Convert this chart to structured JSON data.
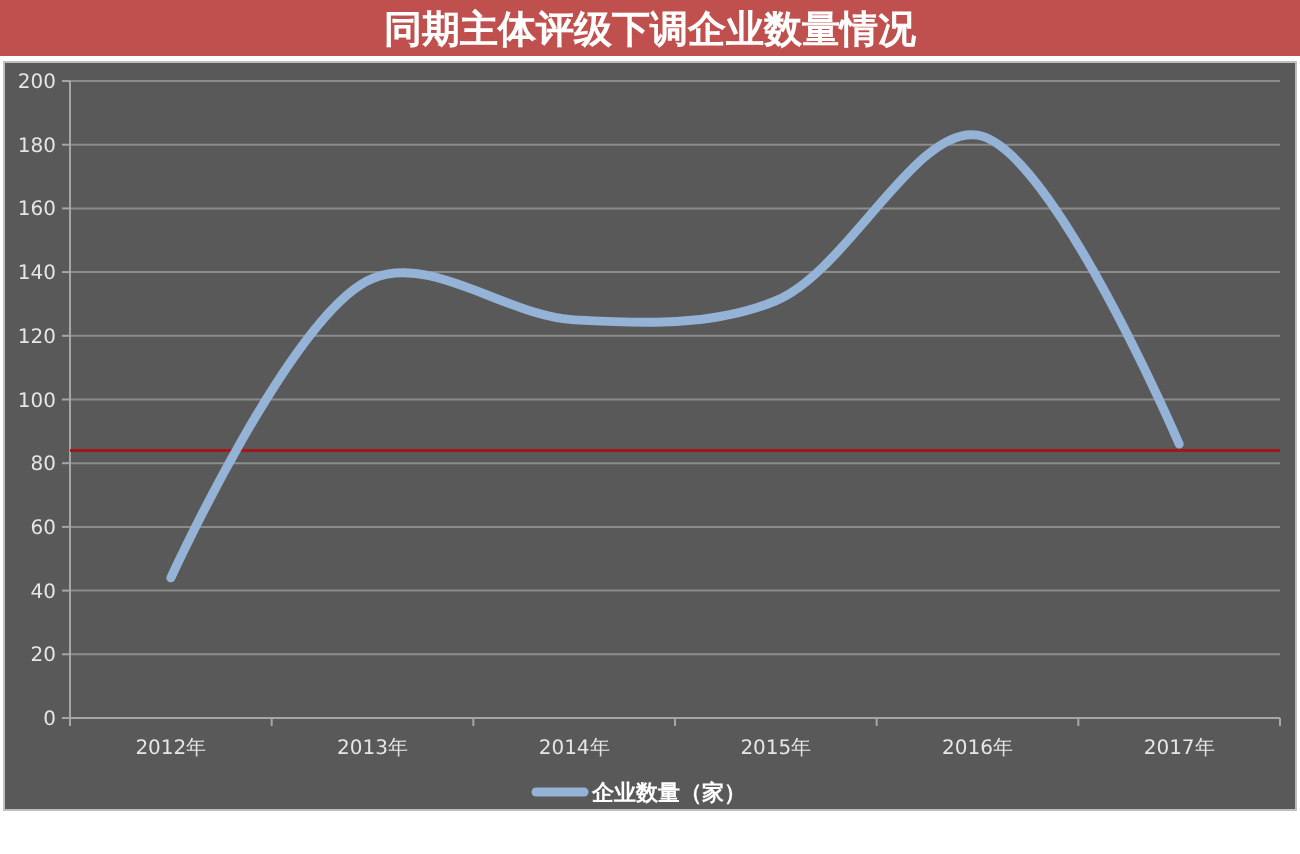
{
  "chart_data": {
    "type": "line",
    "title": "同期主体评级下调企业数量情况",
    "categories": [
      "2012年",
      "2013年",
      "2014年",
      "2015年",
      "2016年",
      "2017年"
    ],
    "series": [
      {
        "name": "企业数量（家）",
        "color": "#95b3d7",
        "values": [
          44,
          138,
          125,
          131,
          183,
          86
        ]
      }
    ],
    "ylim": [
      0,
      200
    ],
    "yticks": [
      0,
      20,
      40,
      60,
      80,
      100,
      120,
      140,
      160,
      180,
      200
    ],
    "grid": "y",
    "legend": "bottom",
    "line_style": "solid",
    "ref_lines": [
      {
        "axis": "y",
        "value": 84,
        "color": "#a01818"
      }
    ]
  }
}
